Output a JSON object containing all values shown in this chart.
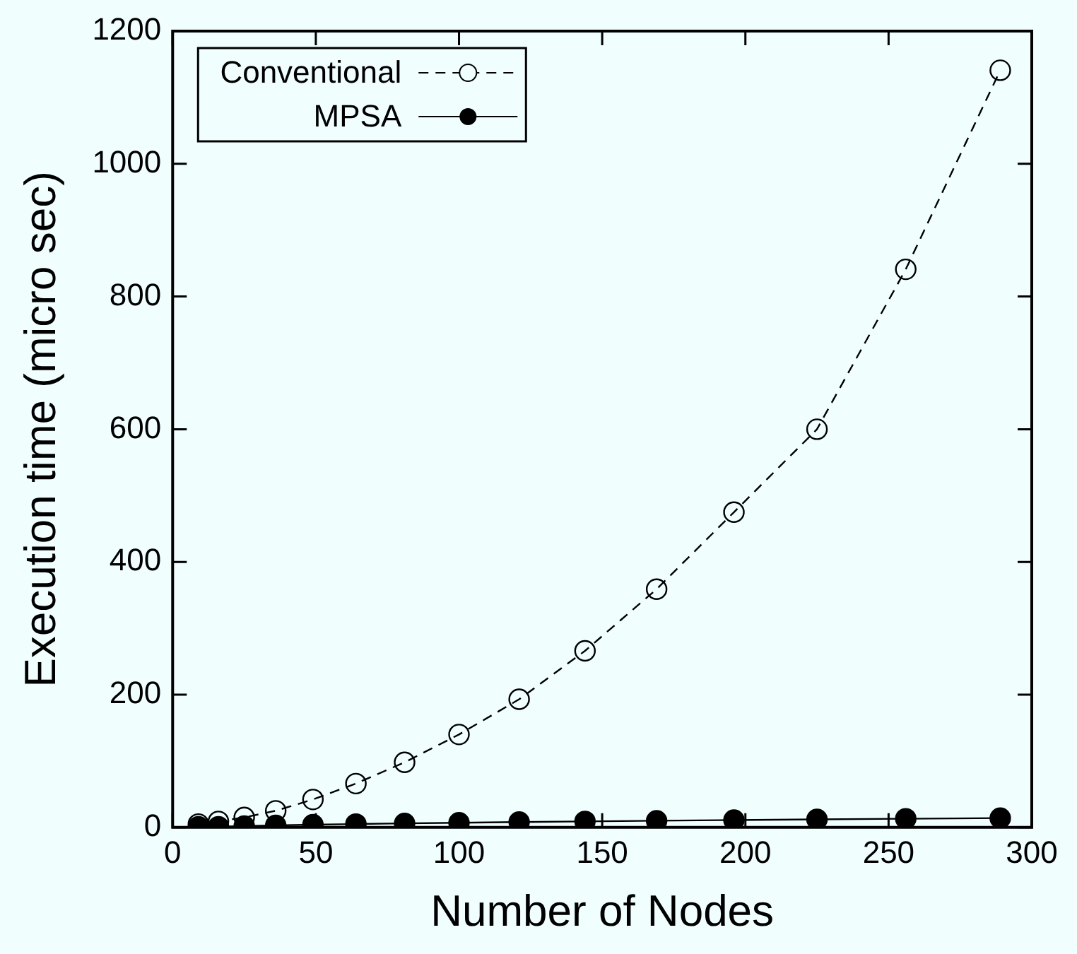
{
  "chart_data": {
    "type": "line",
    "xlabel": "Number of Nodes",
    "ylabel": "Execution time (micro sec)",
    "x": [
      9,
      16,
      25,
      36,
      49,
      64,
      81,
      100,
      121,
      144,
      169,
      196,
      225,
      256,
      289
    ],
    "series": [
      {
        "name": "Conventional",
        "color": "#000000",
        "line_style": "dashed",
        "marker": "circle",
        "values": [
          5,
          9,
          15,
          25,
          42,
          66,
          98,
          140,
          193,
          266,
          359,
          475,
          600,
          841,
          1141
        ]
      },
      {
        "name": "MPSA",
        "color": "#000000",
        "line_style": "solid",
        "marker": "circle",
        "values": [
          1,
          1,
          2,
          3,
          4,
          5,
          6,
          7,
          8,
          9,
          10,
          11,
          12,
          13,
          14
        ]
      }
    ],
    "xlim": [
      0,
      300
    ],
    "xticks": [
      0,
      50,
      100,
      150,
      200,
      250,
      300
    ],
    "ylim": [
      0,
      1200
    ],
    "yticks": [
      0,
      200,
      400,
      600,
      800,
      1000,
      1200
    ],
    "grid": false,
    "legend": "top left"
  }
}
